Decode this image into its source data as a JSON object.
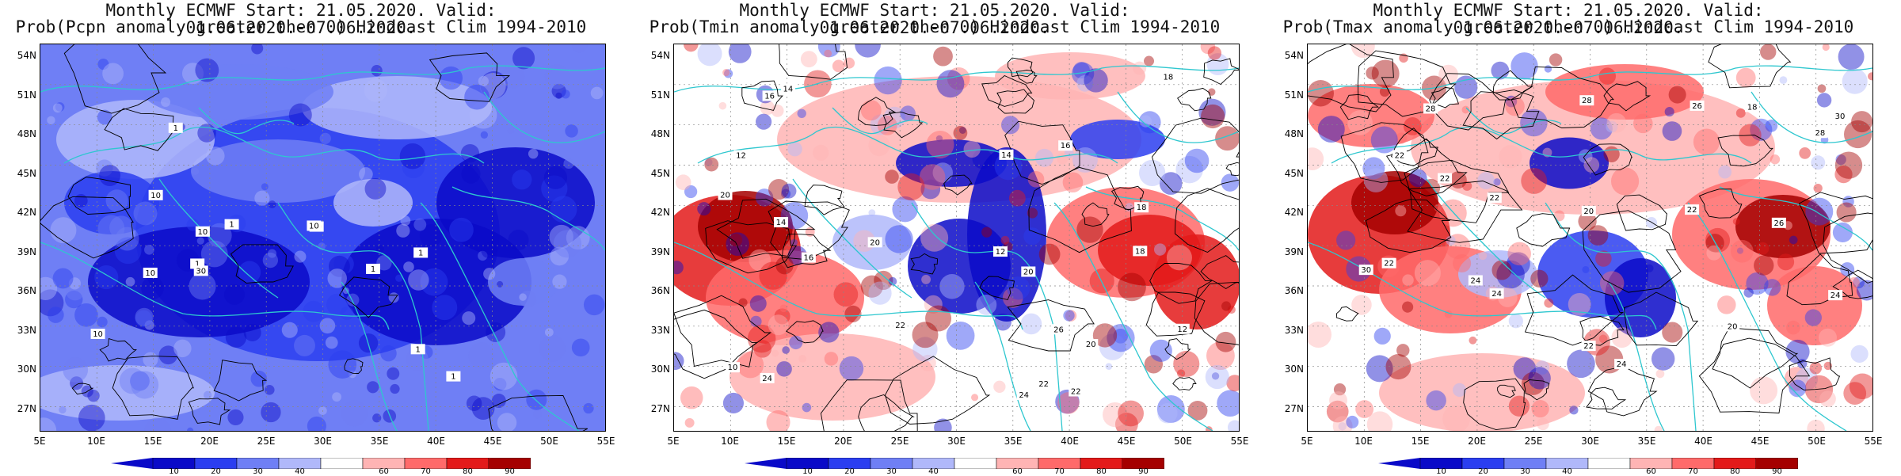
{
  "colors": {
    "cyan": "#2ec7cf",
    "scale": [
      "#0a0ac8",
      "#2b3ef0",
      "#6f7ff5",
      "#b0b8fa",
      "#ffffff",
      "#ffb4b4",
      "#ff6a6a",
      "#e31a1a",
      "#a50000"
    ]
  },
  "colorbar": {
    "ticks": [
      "10",
      "20",
      "30",
      "40",
      "60",
      "70",
      "80",
      "90"
    ]
  },
  "axes": {
    "lat_labels": [
      "54N",
      "51N",
      "48N",
      "45N",
      "42N",
      "39N",
      "36N",
      "33N",
      "30N",
      "27N"
    ],
    "lon_labels": [
      "5E",
      "10E",
      "15E",
      "20E",
      "25E",
      "30E",
      "35E",
      "40E",
      "45E",
      "50E",
      "55E"
    ]
  },
  "panels": [
    {
      "title_line1": "Monthly ECMWF Start: 21.05.2020. Valid: 01.06.2020.-07.06.2020.",
      "title_line2": "Prob(Pcpn anomaly greater then 0) Hindcast Clim 1994-2010",
      "map_type": "precipitation",
      "contour_labels": [
        "10",
        "10",
        "1",
        "1",
        "1",
        "10",
        "30",
        "10",
        "1",
        "1",
        "1",
        "10",
        "10",
        "1"
      ]
    },
    {
      "title_line1": "Monthly ECMWF Start: 21.05.2020. Valid: 01.06.2020.-07.06.2020.",
      "title_line2": "Prob(Tmin anomaly greater then 0) Hindcast Clim 1994-2010",
      "map_type": "tmin",
      "contour_labels": [
        "12",
        "12",
        "12",
        "10",
        "14",
        "16",
        "16",
        "20",
        "22",
        "18",
        "20",
        "22",
        "14",
        "24",
        "20",
        "26",
        "20",
        "16",
        "18",
        "14",
        "22",
        "24",
        "18"
      ]
    },
    {
      "title_line1": "Monthly ECMWF Start: 21.05.2020. Valid: 01.06.2020.-07.06.2020.",
      "title_line2": "Prob(Tmax anomaly greater then 0) Hindcast Clim 1994-2010",
      "map_type": "tmax",
      "contour_labels": [
        "20",
        "22",
        "24",
        "22",
        "18",
        "24",
        "22",
        "26",
        "28",
        "22",
        "28",
        "24",
        "30",
        "22",
        "24",
        "28",
        "20",
        "30",
        "26",
        "22"
      ]
    }
  ]
}
